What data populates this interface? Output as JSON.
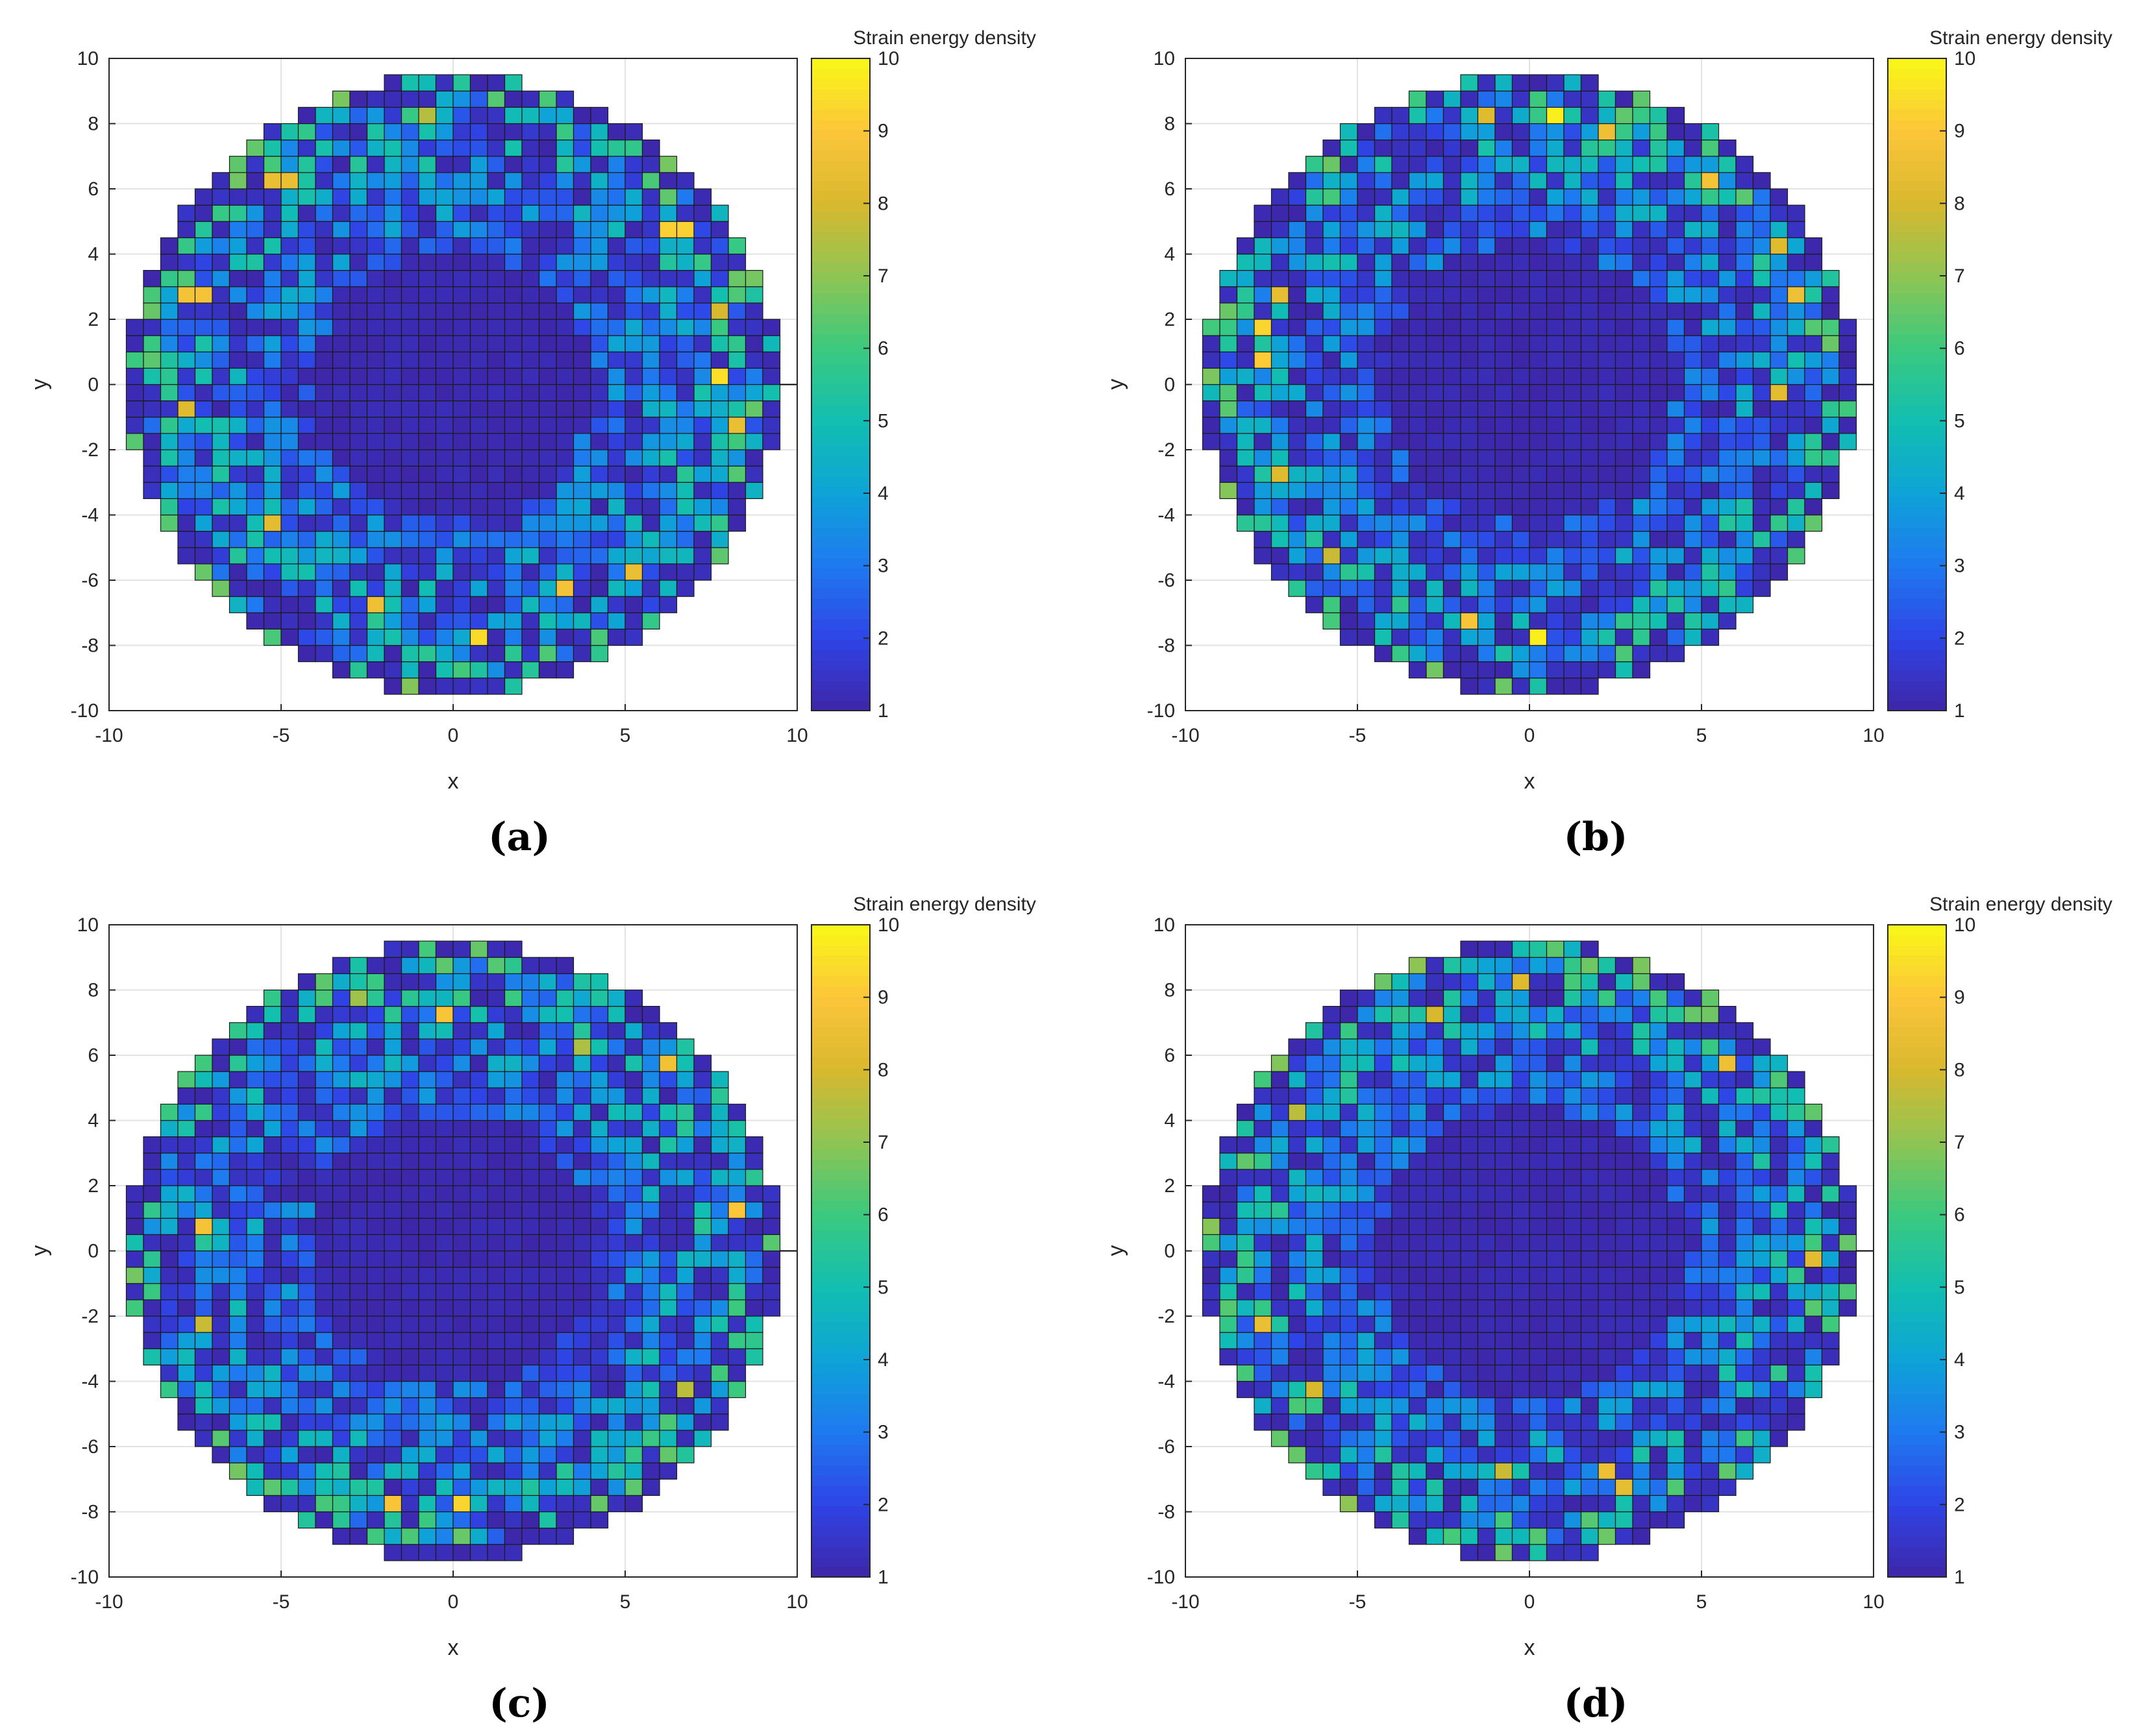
{
  "figure": {
    "colormap_stops": [
      "#3e26a8",
      "#2f44e6",
      "#1f79f0",
      "#0ea3d8",
      "#12bfb0",
      "#3bc97f",
      "#8fc554",
      "#d8b82e",
      "#fcc63a",
      "#f9f816"
    ]
  },
  "chart_data": [
    {
      "type": "heatmap",
      "panel_label": "(a)",
      "xlabel": "x",
      "ylabel": "y",
      "colorbar_label": "Strain energy density",
      "xlim": [
        -10,
        10
      ],
      "ylim": [
        -10,
        10
      ],
      "xticks": [
        "-10",
        "-5",
        "0",
        "5",
        "10"
      ],
      "yticks": [
        "-10",
        "-8",
        "-6",
        "-4",
        "-2",
        "0",
        "2",
        "4",
        "6",
        "8",
        "10"
      ],
      "color_range": [
        1,
        10
      ],
      "colorbar_ticks": [
        "1",
        "2",
        "3",
        "4",
        "5",
        "6",
        "7",
        "8",
        "9",
        "10"
      ],
      "grid": true,
      "cell_size": 0.5,
      "domain_radius": 9.5,
      "low_core_radius": 4.0,
      "hotspots": [
        {
          "x": -5,
          "y": 6.25,
          "v": 8.5
        },
        {
          "x": -7.5,
          "y": 2.75,
          "v": 8.8
        },
        {
          "x": 6.5,
          "y": 4.75,
          "v": 9.2
        },
        {
          "x": 7.75,
          "y": 0.25,
          "v": 9.5
        },
        {
          "x": 8.25,
          "y": -1.25,
          "v": 8.5
        },
        {
          "x": 7.75,
          "y": 2.25,
          "v": 8.0
        },
        {
          "x": -5.25,
          "y": -4.25,
          "v": 8.3
        },
        {
          "x": -2.25,
          "y": -6.75,
          "v": 8.6
        },
        {
          "x": 3.25,
          "y": -6.25,
          "v": 8.8
        },
        {
          "x": 0.75,
          "y": -7.75,
          "v": 9.4
        },
        {
          "x": 5.25,
          "y": -5.75,
          "v": 8.5
        },
        {
          "x": -7.75,
          "y": -0.75,
          "v": 8.2
        },
        {
          "x": -0.75,
          "y": 8.25,
          "v": 7.5
        }
      ]
    },
    {
      "type": "heatmap",
      "panel_label": "(b)",
      "xlabel": "x",
      "ylabel": "y",
      "colorbar_label": "Strain energy density",
      "xlim": [
        -10,
        10
      ],
      "ylim": [
        -10,
        10
      ],
      "xticks": [
        "-10",
        "-5",
        "0",
        "5",
        "10"
      ],
      "yticks": [
        "-10",
        "-8",
        "-6",
        "-4",
        "-2",
        "0",
        "2",
        "4",
        "6",
        "8",
        "10"
      ],
      "color_range": [
        1,
        10
      ],
      "colorbar_ticks": [
        "1",
        "2",
        "3",
        "4",
        "5",
        "6",
        "7",
        "8",
        "9",
        "10"
      ],
      "grid": true,
      "cell_size": 0.5,
      "domain_radius": 9.5,
      "low_core_radius": 4.3,
      "hotspots": [
        {
          "x": 0.75,
          "y": 8.25,
          "v": 9.8
        },
        {
          "x": 2.25,
          "y": 7.75,
          "v": 8.6
        },
        {
          "x": -1.25,
          "y": 8.25,
          "v": 8.2
        },
        {
          "x": -7.75,
          "y": 1.75,
          "v": 9.3
        },
        {
          "x": -7.75,
          "y": 0.75,
          "v": 9.1
        },
        {
          "x": -7.25,
          "y": 2.75,
          "v": 8.4
        },
        {
          "x": 7.25,
          "y": 4.25,
          "v": 8.2
        },
        {
          "x": 7.75,
          "y": 2.75,
          "v": 8.6
        },
        {
          "x": 7.25,
          "y": -0.25,
          "v": 8.3
        },
        {
          "x": 5.25,
          "y": 6.25,
          "v": 8.8
        },
        {
          "x": 0.25,
          "y": -7.75,
          "v": 9.8
        },
        {
          "x": -1.75,
          "y": -7.25,
          "v": 8.9
        },
        {
          "x": -7.25,
          "y": -2.75,
          "v": 8.2
        },
        {
          "x": -5.75,
          "y": -5.25,
          "v": 7.8
        }
      ]
    },
    {
      "type": "heatmap",
      "panel_label": "(c)",
      "xlabel": "x",
      "ylabel": "y",
      "colorbar_label": "Strain energy density",
      "xlim": [
        -10,
        10
      ],
      "ylim": [
        -10,
        10
      ],
      "xticks": [
        "-10",
        "-5",
        "0",
        "5",
        "10"
      ],
      "yticks": [
        "-10",
        "-8",
        "-6",
        "-4",
        "-2",
        "0",
        "2",
        "4",
        "6",
        "8",
        "10"
      ],
      "color_range": [
        1,
        10
      ],
      "colorbar_ticks": [
        "1",
        "2",
        "3",
        "4",
        "5",
        "6",
        "7",
        "8",
        "9",
        "10"
      ],
      "grid": true,
      "cell_size": 0.5,
      "domain_radius": 9.5,
      "low_core_radius": 4.2,
      "hotspots": [
        {
          "x": -0.25,
          "y": 7.25,
          "v": 8.9
        },
        {
          "x": 6.25,
          "y": 5.75,
          "v": 8.7
        },
        {
          "x": 8.25,
          "y": 1.25,
          "v": 9.0
        },
        {
          "x": -7.25,
          "y": 0.75,
          "v": 8.8
        },
        {
          "x": -1.75,
          "y": -7.75,
          "v": 8.9
        },
        {
          "x": 0.25,
          "y": -7.75,
          "v": 9.3
        },
        {
          "x": -7.25,
          "y": -2.25,
          "v": 7.8
        },
        {
          "x": 6.75,
          "y": -4.25,
          "v": 7.6
        },
        {
          "x": 3.75,
          "y": 6.25,
          "v": 7.4
        },
        {
          "x": -2.75,
          "y": 7.75,
          "v": 7.2
        }
      ]
    },
    {
      "type": "heatmap",
      "panel_label": "(d)",
      "xlabel": "x",
      "ylabel": "y",
      "colorbar_label": "Strain energy density",
      "xlim": [
        -10,
        10
      ],
      "ylim": [
        -10,
        10
      ],
      "xticks": [
        "-10",
        "-5",
        "0",
        "5",
        "10"
      ],
      "yticks": [
        "-10",
        "-8",
        "-6",
        "-4",
        "-2",
        "0",
        "2",
        "4",
        "6",
        "8",
        "10"
      ],
      "color_range": [
        1,
        10
      ],
      "colorbar_ticks": [
        "1",
        "2",
        "3",
        "4",
        "5",
        "6",
        "7",
        "8",
        "9",
        "10"
      ],
      "grid": true,
      "cell_size": 0.5,
      "domain_radius": 9.5,
      "low_core_radius": 4.4,
      "hotspots": [
        {
          "x": -2.75,
          "y": 7.25,
          "v": 8.0
        },
        {
          "x": -0.25,
          "y": 8.25,
          "v": 8.2
        },
        {
          "x": 5.75,
          "y": 5.75,
          "v": 8.6
        },
        {
          "x": 8.25,
          "y": -0.25,
          "v": 8.3
        },
        {
          "x": -7.75,
          "y": -2.25,
          "v": 8.5
        },
        {
          "x": -6.25,
          "y": -4.25,
          "v": 8.0
        },
        {
          "x": 2.25,
          "y": -6.75,
          "v": 8.6
        },
        {
          "x": 2.75,
          "y": -7.25,
          "v": 8.4
        },
        {
          "x": -0.75,
          "y": -6.75,
          "v": 7.8
        },
        {
          "x": -6.75,
          "y": 4.25,
          "v": 7.6
        }
      ]
    }
  ]
}
